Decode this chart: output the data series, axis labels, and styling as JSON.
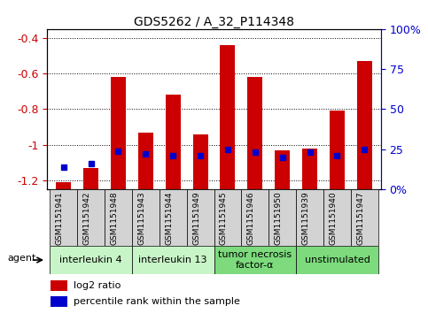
{
  "title": "GDS5262 / A_32_P114348",
  "samples": [
    "GSM1151941",
    "GSM1151942",
    "GSM1151948",
    "GSM1151943",
    "GSM1151944",
    "GSM1151949",
    "GSM1151945",
    "GSM1151946",
    "GSM1151950",
    "GSM1151939",
    "GSM1151940",
    "GSM1151947"
  ],
  "log2_ratio": [
    -1.21,
    -1.13,
    -0.62,
    -0.93,
    -0.72,
    -0.94,
    -0.44,
    -0.62,
    -1.03,
    -1.02,
    -0.81,
    -0.53
  ],
  "percentile_rank": [
    14,
    16,
    24,
    22,
    21,
    21,
    25,
    23,
    20,
    23,
    21,
    25
  ],
  "agents": [
    {
      "label": "interleukin 4",
      "start": 0,
      "end": 3,
      "color": "#c8f5c8"
    },
    {
      "label": "interleukin 13",
      "start": 3,
      "end": 6,
      "color": "#c8f5c8"
    },
    {
      "label": "tumor necrosis\nfactor-α",
      "start": 6,
      "end": 9,
      "color": "#7ddb7d"
    },
    {
      "label": "unstimulated",
      "start": 9,
      "end": 12,
      "color": "#7ddb7d"
    }
  ],
  "bar_color": "#cc0000",
  "dot_color": "#0000cc",
  "ylim_left": [
    -1.25,
    -0.35
  ],
  "ylim_right": [
    0,
    100
  ],
  "yticks_left": [
    -1.2,
    -1.0,
    -0.8,
    -0.6,
    -0.4
  ],
  "yticks_right": [
    0,
    25,
    50,
    75,
    100
  ],
  "ytick_labels_left": [
    "-1.2",
    "-1",
    "-0.8",
    "-0.6",
    "-0.4"
  ],
  "ytick_labels_right": [
    "0%",
    "25",
    "50",
    "75",
    "100%"
  ],
  "background_color": "#ffffff",
  "bar_width": 0.55,
  "cell_color": "#d3d3d3",
  "agent_label": "agent"
}
